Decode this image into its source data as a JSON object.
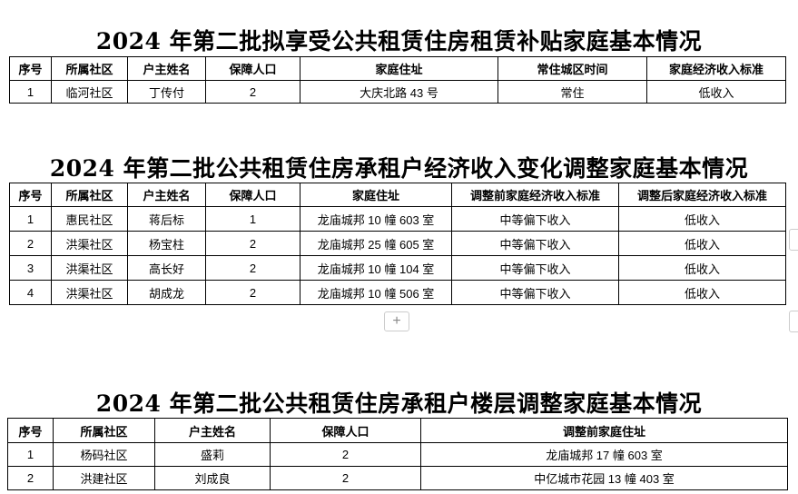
{
  "sections": [
    {
      "title": "2024 年第二批拟享受公共租赁住房租赁补贴家庭基本情况",
      "headers": [
        "序号",
        "所属社区",
        "户主姓名",
        "保障人口",
        "家庭住址",
        "常住城区时间",
        "家庭经济收入标准"
      ],
      "rows": [
        [
          "1",
          "临河社区",
          "丁传付",
          "2",
          "大庆北路 43 号",
          "常住",
          "低收入"
        ]
      ]
    },
    {
      "title": "2024 年第二批公共租赁住房承租户经济收入变化调整家庭基本情况",
      "headers": [
        "序号",
        "所属社区",
        "户主姓名",
        "保障人口",
        "家庭住址",
        "调整前家庭经济收入标准",
        "调整后家庭经济收入标准"
      ],
      "rows": [
        [
          "1",
          "惠民社区",
          "蒋后标",
          "1",
          "龙庙城邦 10 幢 603 室",
          "中等偏下收入",
          "低收入"
        ],
        [
          "2",
          "洪渠社区",
          "杨宝柱",
          "2",
          "龙庙城邦 25 幢 605 室",
          "中等偏下收入",
          "低收入"
        ],
        [
          "3",
          "洪渠社区",
          "高长好",
          "2",
          "龙庙城邦 10 幢 104 室",
          "中等偏下收入",
          "低收入"
        ],
        [
          "4",
          "洪渠社区",
          "胡成龙",
          "2",
          "龙庙城邦 10 幢 506 室",
          "中等偏下收入",
          "低收入"
        ]
      ]
    },
    {
      "title": "2024 年第二批公共租赁住房承租户楼层调整家庭基本情况",
      "headers": [
        "序号",
        "所属社区",
        "户主姓名",
        "保障人口",
        "调整前家庭住址"
      ],
      "rows": [
        [
          "1",
          "杨码社区",
          "盛莉",
          "2",
          "龙庙城邦 17 幢 603 室"
        ],
        [
          "2",
          "洪建社区",
          "刘成良",
          "2",
          "中亿城市花园 13 幢 403 室"
        ]
      ]
    }
  ],
  "add_button": "+",
  "icons": {
    "add": "plus-icon"
  }
}
